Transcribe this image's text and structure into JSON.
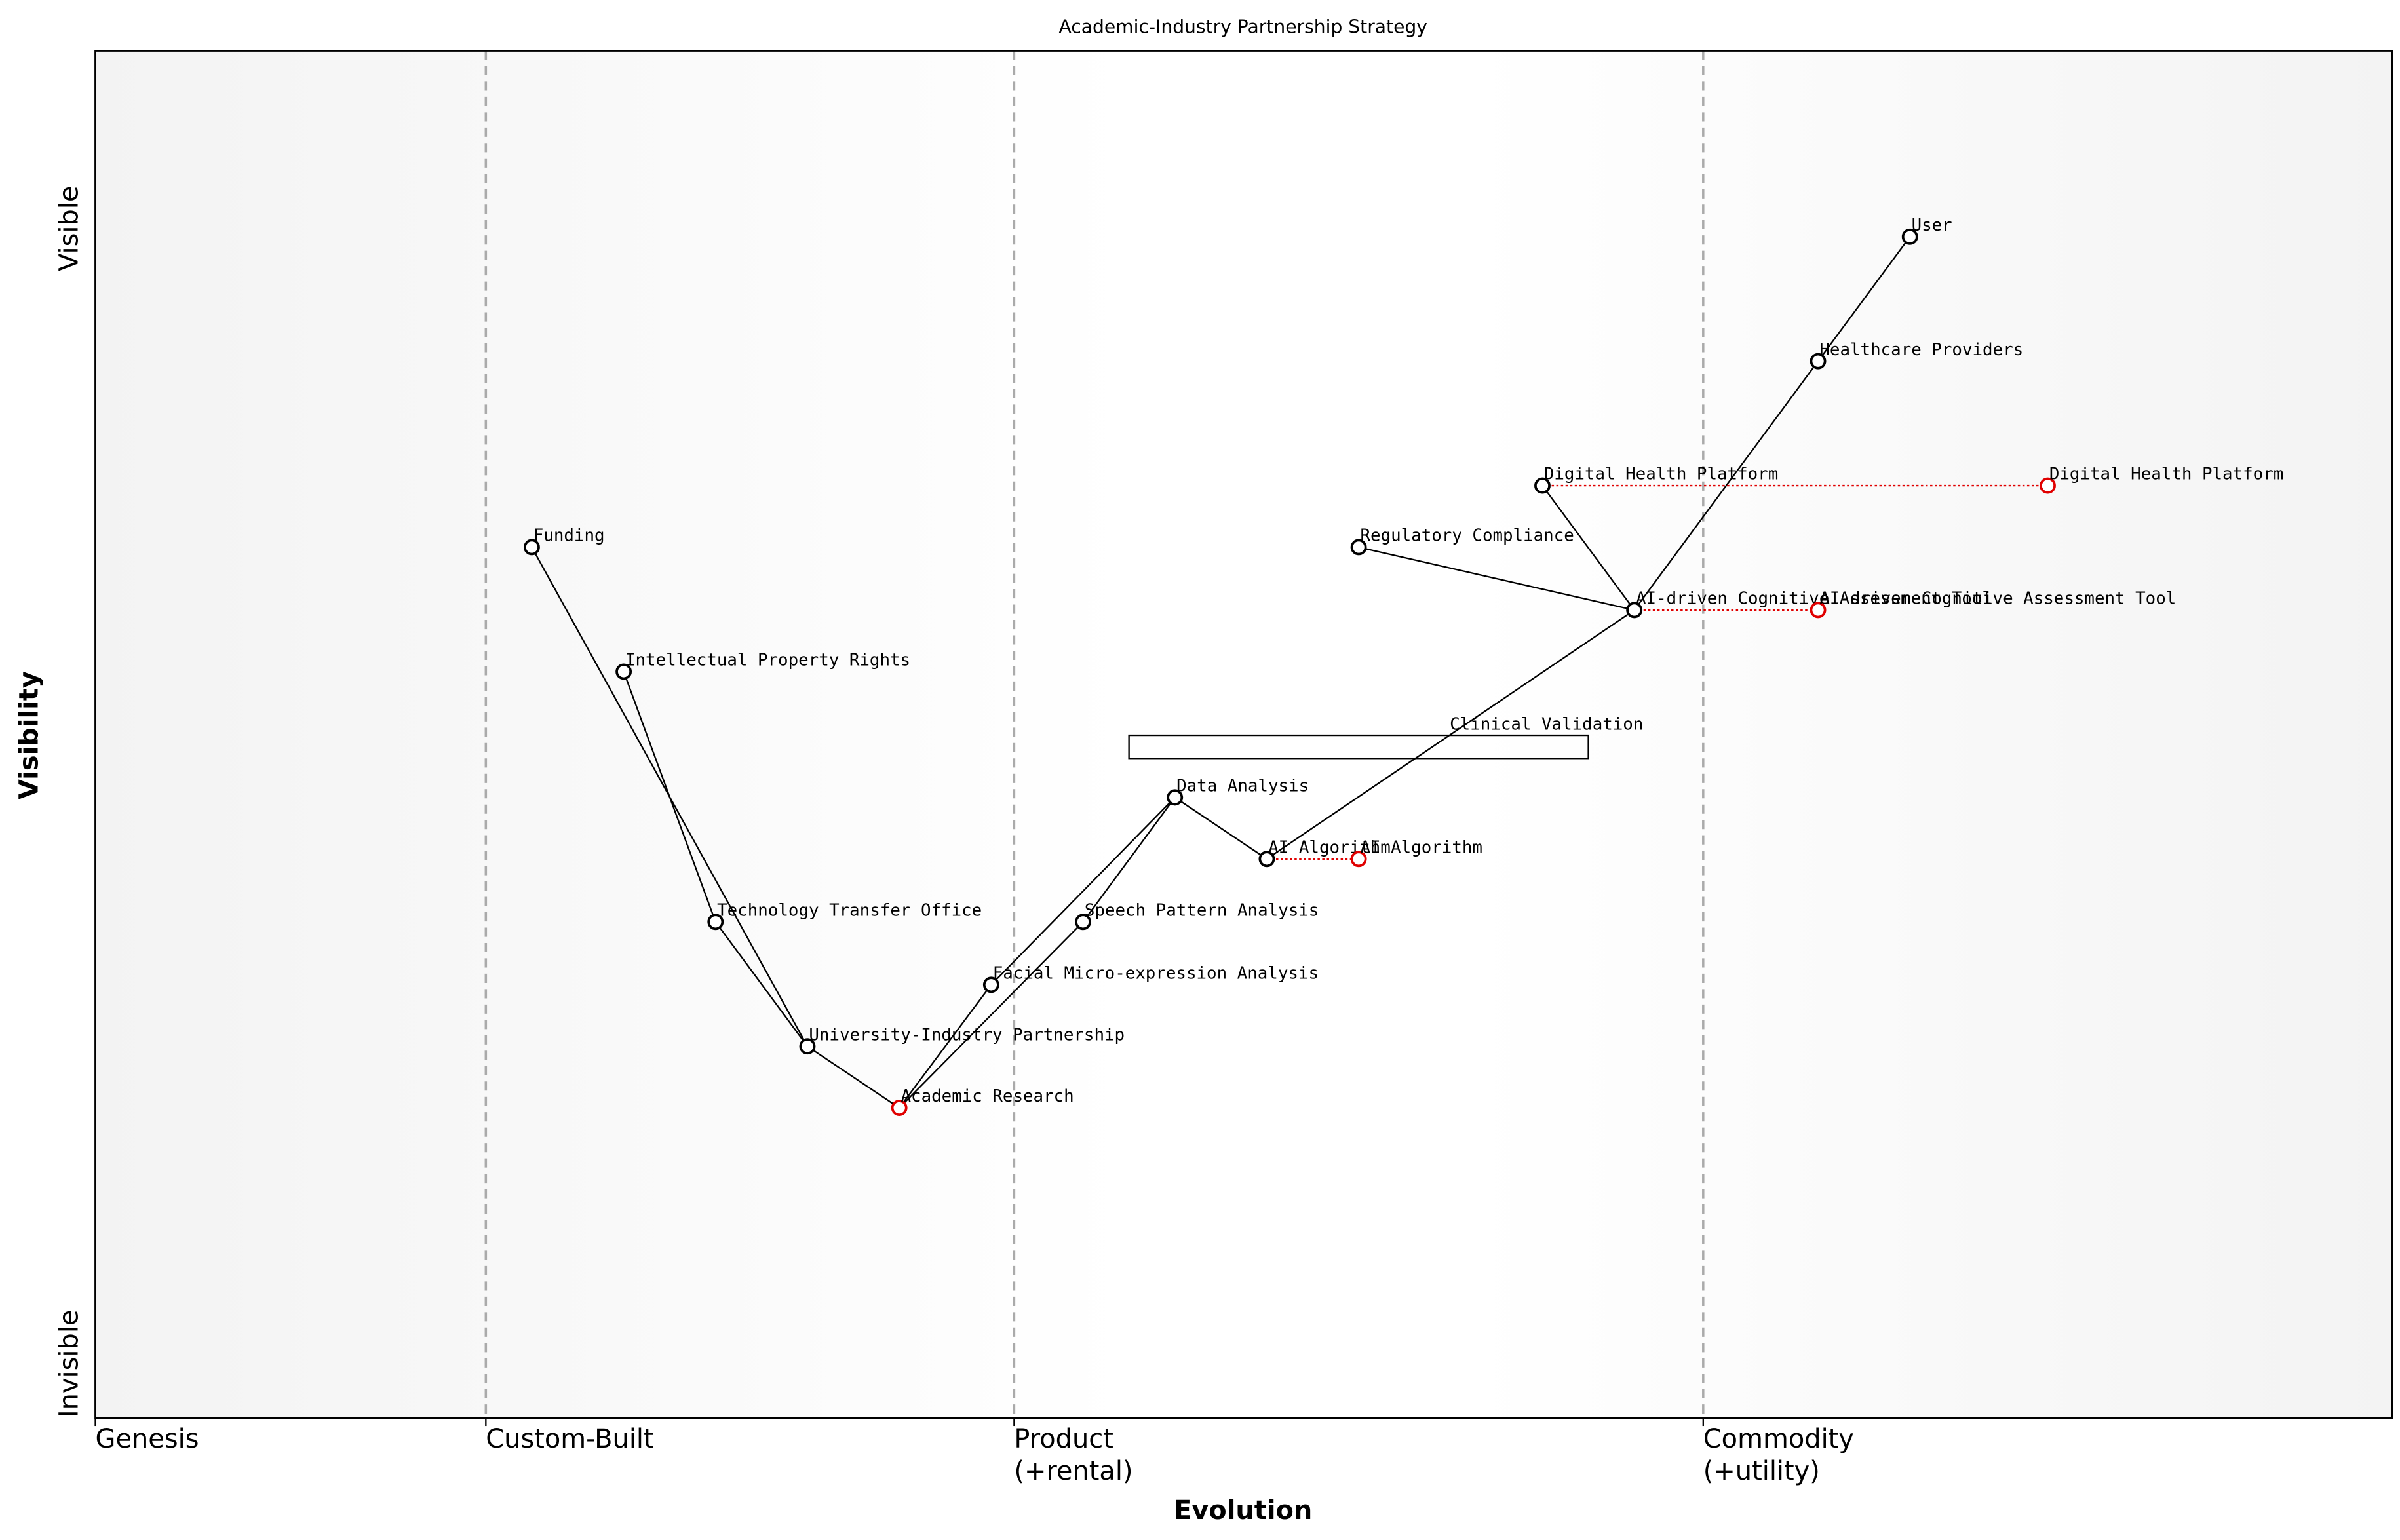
{
  "chart_data": {
    "type": "wardley",
    "title": "Academic-Industry Partnership Strategy",
    "xlabel": "Evolution",
    "ylabel": "Visibility",
    "xlim": [
      0,
      1
    ],
    "ylim": [
      0,
      1
    ],
    "xticks": [
      {
        "value": 0,
        "label": "Genesis"
      },
      {
        "value": 0.17,
        "label": "Custom-Built"
      },
      {
        "value": 0.4,
        "label": "Product\n(+rental)"
      },
      {
        "value": 0.7,
        "label": "Commodity\n(+utility)"
      }
    ],
    "yticks": [
      {
        "value": 0.04,
        "label": "Invisible"
      },
      {
        "value": 0.87,
        "label": "Visible"
      }
    ],
    "stage_lines": true,
    "components": [
      {
        "name": "User",
        "x": 0.79,
        "y": 0.864,
        "color": "#000000"
      },
      {
        "name": "Healthcare Providers",
        "x": 0.75,
        "y": 0.773,
        "color": "#000000"
      },
      {
        "name": "Digital Health Platform",
        "x": 0.63,
        "y": 0.682,
        "color": "#000000"
      },
      {
        "name": "Regulatory Compliance",
        "x": 0.55,
        "y": 0.637,
        "color": "#000000"
      },
      {
        "name": "AI-driven Cognitive Assessment Tool",
        "x": 0.67,
        "y": 0.591,
        "color": "#000000"
      },
      {
        "name": "Funding",
        "x": 0.19,
        "y": 0.637,
        "color": "#000000"
      },
      {
        "name": "Intellectual Property Rights",
        "x": 0.23,
        "y": 0.546,
        "color": "#000000"
      },
      {
        "name": "Technology Transfer Office",
        "x": 0.27,
        "y": 0.363,
        "color": "#000000"
      },
      {
        "name": "University-Industry Partnership",
        "x": 0.31,
        "y": 0.272,
        "color": "#000000"
      },
      {
        "name": "Academic Research",
        "x": 0.35,
        "y": 0.227,
        "color": "#e00000"
      },
      {
        "name": "Facial Micro-expression Analysis",
        "x": 0.39,
        "y": 0.317,
        "color": "#000000"
      },
      {
        "name": "Speech Pattern Analysis",
        "x": 0.43,
        "y": 0.363,
        "color": "#000000"
      },
      {
        "name": "Data Analysis",
        "x": 0.47,
        "y": 0.454,
        "color": "#000000"
      },
      {
        "name": "AI Algorithm",
        "x": 0.51,
        "y": 0.409,
        "color": "#000000"
      },
      {
        "name": "Clinical Validation",
        "x": 0.589,
        "y": 0.499,
        "color": "#000000",
        "hidden": true
      },
      {
        "name": "Digital Health Platform",
        "x": 0.85,
        "y": 0.682,
        "color": "#e00000",
        "evolved_from": 2
      },
      {
        "name": "AI-driven Cognitive Assessment Tool",
        "x": 0.75,
        "y": 0.591,
        "color": "#e00000",
        "evolved_from": 4
      },
      {
        "name": "AI Algorithm",
        "x": 0.55,
        "y": 0.409,
        "color": "#e00000",
        "evolved_from": 13
      }
    ],
    "links": [
      [
        0,
        1
      ],
      [
        1,
        4
      ],
      [
        4,
        2
      ],
      [
        4,
        3
      ],
      [
        4,
        13
      ],
      [
        13,
        12
      ],
      [
        12,
        10
      ],
      [
        12,
        11
      ],
      [
        10,
        9
      ],
      [
        11,
        9
      ],
      [
        5,
        8
      ],
      [
        6,
        7
      ],
      [
        7,
        8
      ],
      [
        8,
        9
      ]
    ],
    "pipelines": [
      {
        "x0": 0.45,
        "x1": 0.65,
        "y": 0.491
      }
    ]
  }
}
